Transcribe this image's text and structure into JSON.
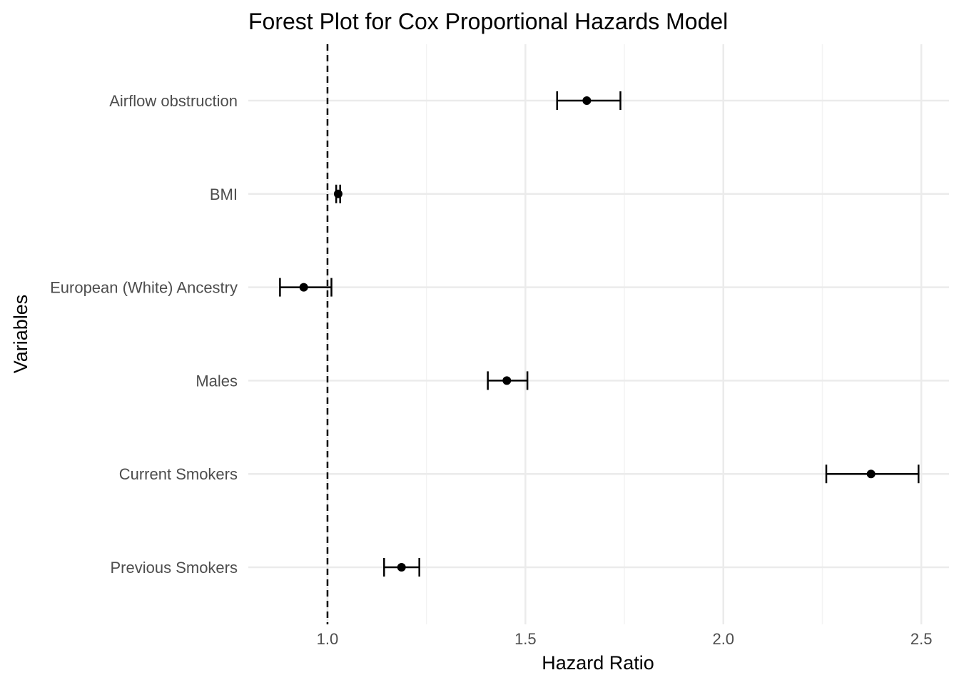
{
  "chart_data": {
    "type": "forest",
    "title": "Forest Plot for Cox Proportional Hazards Model",
    "xlabel": "Hazard Ratio",
    "ylabel": "Variables",
    "xlim": [
      0.8,
      2.57
    ],
    "x_ticks": [
      1.0,
      1.5,
      2.0,
      2.5
    ],
    "x_tick_labels": [
      "1.0",
      "1.5",
      "2.0",
      "2.5"
    ],
    "x_minor_ticks": [
      1.25,
      1.75,
      2.25
    ],
    "reference_line": 1.0,
    "reference_line_style": "dashed",
    "grid": true,
    "categories": [
      "Airflow obstruction",
      "BMI",
      "European (White) Ancestry",
      "Males",
      "Current Smokers",
      "Previous Smokers"
    ],
    "hazard_ratio": [
      1.655,
      1.027,
      0.94,
      1.453,
      2.373,
      1.187
    ],
    "ci_lower": [
      1.58,
      1.022,
      0.88,
      1.405,
      2.26,
      1.143
    ],
    "ci_upper": [
      1.74,
      1.032,
      1.01,
      1.505,
      2.493,
      1.232
    ]
  }
}
